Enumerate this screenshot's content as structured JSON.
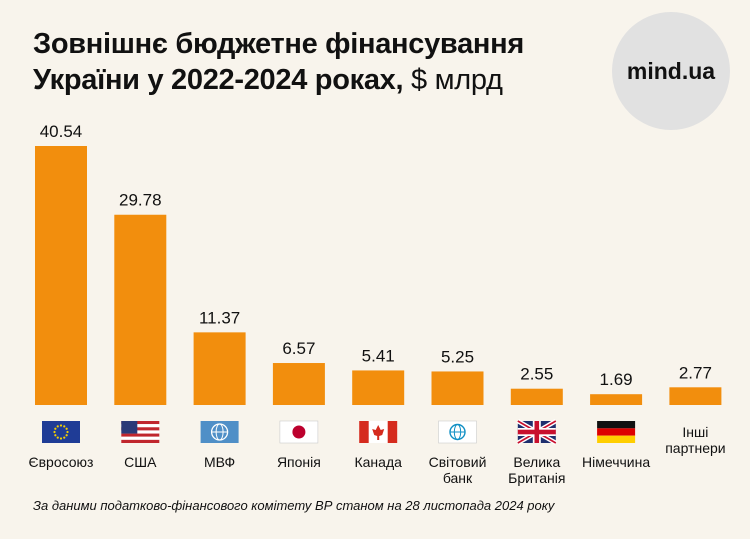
{
  "title_line1": "Зовнішнє бюджетне фінансування",
  "title_line2": "України у 2022-2024 роках,",
  "title_unit": "$ млрд",
  "logo_text": "mind.ua",
  "footnote": "За даними податково-фінансового комітету ВР станом на 28 листопада 2024 року",
  "colors": {
    "bar": "#f28e0d",
    "background": "#f8f4ec",
    "logo_circle": "#e1e1e1"
  },
  "chart_data": {
    "type": "bar",
    "title": "Зовнішнє бюджетне фінансування України у 2022-2024 роках, $ млрд",
    "categories": [
      [
        "Євросоюз"
      ],
      [
        "США"
      ],
      [
        "МВФ"
      ],
      [
        "Японія"
      ],
      [
        "Канада"
      ],
      [
        "Світовий",
        "банк"
      ],
      [
        "Велика",
        "Британія"
      ],
      [
        "Німеччина"
      ],
      [
        "Інші",
        "партнери"
      ]
    ],
    "values": [
      40.54,
      29.78,
      11.37,
      6.57,
      5.41,
      5.25,
      2.55,
      1.69,
      2.77
    ],
    "value_labels": [
      "40.54",
      "29.78",
      "11.37",
      "6.57",
      "5.41",
      "5.25",
      "2.55",
      "1.69",
      "2.77"
    ],
    "flag_icons": [
      "eu-flag-icon",
      "usa-flag-icon",
      "imf-logo-icon",
      "japan-flag-icon",
      "canada-flag-icon",
      "world-bank-logo-icon",
      "uk-flag-icon",
      "germany-flag-icon",
      ""
    ],
    "ylim": [
      0,
      40.54
    ],
    "grid": false,
    "legend": "none"
  }
}
